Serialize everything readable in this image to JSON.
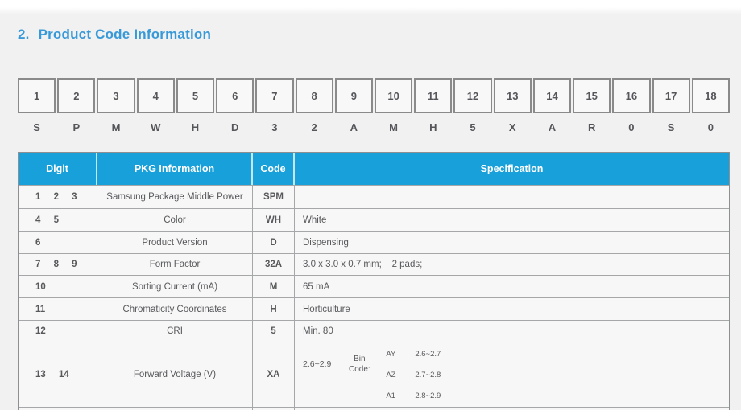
{
  "page": {
    "section_number": "2.",
    "title": "Product Code Information"
  },
  "product_code": {
    "digits": [
      "1",
      "2",
      "3",
      "4",
      "5",
      "6",
      "7",
      "8",
      "9",
      "10",
      "11",
      "12",
      "13",
      "14",
      "15",
      "16",
      "17",
      "18"
    ],
    "letters": [
      "S",
      "P",
      "M",
      "W",
      "H",
      "D",
      "3",
      "2",
      "A",
      "M",
      "H",
      "5",
      "X",
      "A",
      "R",
      "0",
      "S",
      "0"
    ]
  },
  "table": {
    "headers": [
      "Digit",
      "PKG Information",
      "Code",
      "Specification"
    ],
    "rows": [
      {
        "digit": "1 2 3",
        "pkg": "Samsung Package Middle Power",
        "code": "SPM",
        "spec": ""
      },
      {
        "digit": "4 5",
        "pkg": "Color",
        "code": "WH",
        "spec": "White"
      },
      {
        "digit": "6",
        "pkg": "Product Version",
        "code": "D",
        "spec": "Dispensing"
      },
      {
        "digit": "7 8 9",
        "pkg": "Form Factor",
        "code": "32A",
        "spec": "3.0 x 3.0 x 0.7 mm;    2 pads;"
      },
      {
        "digit": "10",
        "pkg": "Sorting Current (mA)",
        "code": "M",
        "spec": "65 mA"
      },
      {
        "digit": "11",
        "pkg": "Chromaticity Coordinates",
        "code": "H",
        "spec": "Horticulture"
      },
      {
        "digit": "12",
        "pkg": "CRI",
        "code": "5",
        "spec": "Min. 80"
      },
      {
        "digit": "13 14",
        "pkg": "Forward Voltage (V)",
        "code": "XA",
        "spec_main": "2.6~2.9",
        "bin_label": "Bin Code:",
        "bins": [
          {
            "code": "AY",
            "range": "2.6~2.7"
          },
          {
            "code": "AZ",
            "range": "2.7~2.8"
          },
          {
            "code": "A1",
            "range": "2.8~2.9"
          }
        ]
      }
    ]
  },
  "colors": {
    "header_blue": "#18A0DA",
    "title_blue": "#3899D8"
  }
}
